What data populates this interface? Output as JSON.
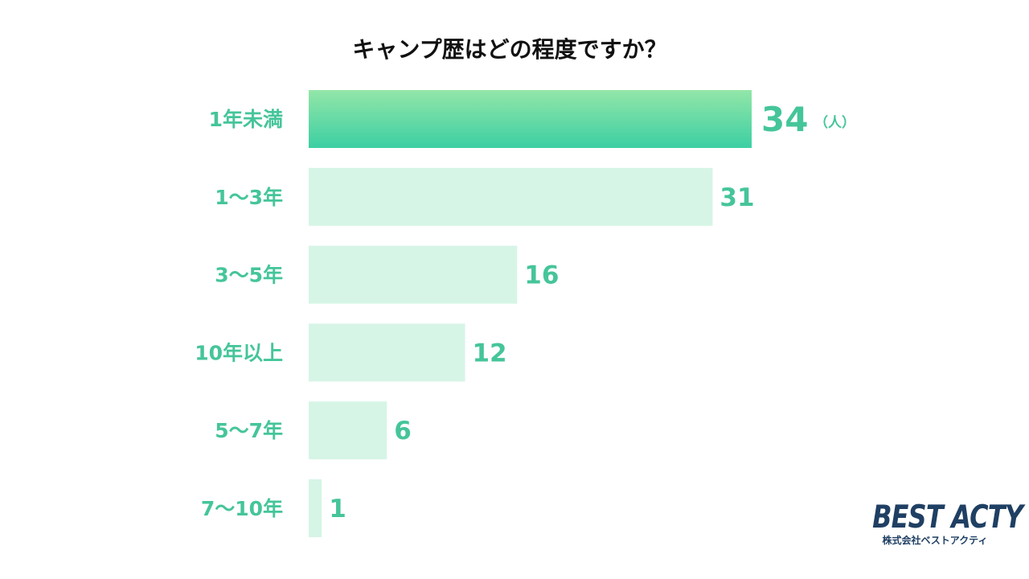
{
  "chart_data": {
    "type": "bar",
    "orientation": "horizontal",
    "title": "キャンプ歴はどの程度ですか？",
    "categories": [
      "1年未満",
      "1～3年",
      "3～5年",
      "10年以上",
      "5～7年",
      "7～10年"
    ],
    "values": [
      34,
      31,
      16,
      12,
      6,
      1
    ],
    "unit": "（人）",
    "xlim": [
      0,
      34
    ],
    "grid": false,
    "legend": "none",
    "highlight_index": 0
  },
  "colors": {
    "highlight_top": "#93e6a8",
    "highlight_bottom": "#3ccfa3",
    "bar": "#d6f5e6",
    "label": "#45c59a",
    "title": "#111111",
    "brand": "#1f3f63"
  },
  "brand": {
    "name": "BEST ACTY",
    "company": "株式会社ベストアクティ"
  }
}
